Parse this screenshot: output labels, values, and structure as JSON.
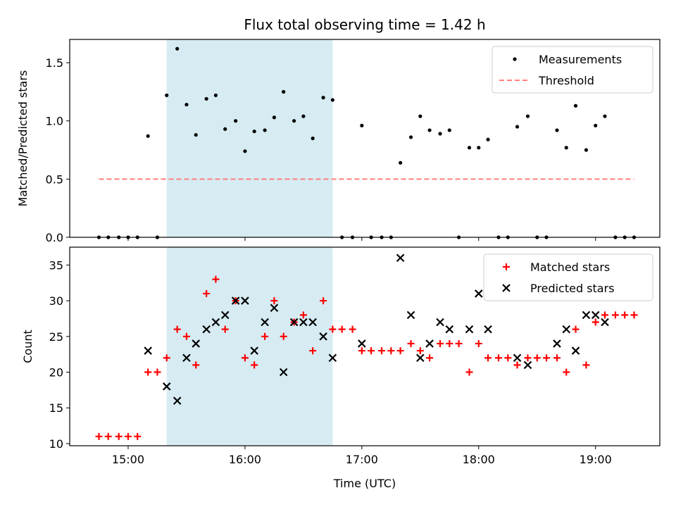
{
  "chart_data": {
    "title": "Flux total observing time = 1.42 h",
    "xlabel": "Time (UTC)",
    "x_ticks": [
      "15:00",
      "16:00",
      "17:00",
      "18:00",
      "19:00"
    ],
    "x_tick_hours": [
      15,
      16,
      17,
      18,
      19
    ],
    "xlim_hours": [
      14.5,
      19.55
    ],
    "highlight_hours": [
      15.33,
      16.75
    ],
    "colors": {
      "highlight": "#add8e6",
      "matched": "#ff0000",
      "predicted": "#000000",
      "measurement": "#000000",
      "threshold": "#ff7f7f"
    },
    "panels": [
      {
        "type": "scatter",
        "ylabel": "Matched/Predicted stars",
        "ylim": [
          0,
          1.7
        ],
        "y_ticks": [
          0.0,
          0.5,
          1.0,
          1.5
        ],
        "y_tick_labels": [
          "0.0",
          "0.5",
          "1.0",
          "1.5"
        ],
        "legend_position": "top-right",
        "threshold": {
          "name": "Threshold",
          "value": 0.5,
          "x_range_hours": [
            14.75,
            19.33
          ]
        },
        "series": [
          {
            "name": "Measurements",
            "x_hours": [
              14.75,
              14.83,
              14.92,
              15.0,
              15.08,
              15.17,
              15.25,
              15.33,
              15.42,
              15.5,
              15.58,
              15.67,
              15.75,
              15.83,
              15.92,
              16.0,
              16.08,
              16.17,
              16.25,
              16.33,
              16.42,
              16.5,
              16.58,
              16.67,
              16.75,
              16.83,
              16.92,
              17.0,
              17.08,
              17.17,
              17.25,
              17.33,
              17.42,
              17.5,
              17.58,
              17.67,
              17.75,
              17.83,
              17.92,
              18.0,
              18.08,
              18.17,
              18.25,
              18.33,
              18.42,
              18.5,
              18.58,
              18.67,
              18.75,
              18.83,
              18.92,
              19.0,
              19.08,
              19.17,
              19.25,
              19.33
            ],
            "y": [
              0,
              0,
              0,
              0,
              0,
              0.87,
              0,
              1.22,
              1.62,
              1.14,
              0.88,
              1.19,
              1.22,
              0.93,
              1.0,
              0.74,
              0.91,
              0.92,
              1.03,
              1.25,
              1.0,
              1.04,
              0.85,
              1.2,
              1.18,
              0,
              0,
              0.96,
              0,
              0,
              0,
              0.64,
              0.86,
              1.04,
              0.92,
              0.89,
              0.92,
              0,
              0.77,
              0.77,
              0.84,
              0,
              0,
              0.95,
              1.04,
              0,
              0,
              0.92,
              0.77,
              1.13,
              0.75,
              0.96,
              1.04,
              0,
              0,
              0
            ]
          }
        ]
      },
      {
        "type": "scatter",
        "ylabel": "Count",
        "ylim": [
          9.7,
          37.5
        ],
        "y_ticks": [
          10,
          15,
          20,
          25,
          30,
          35
        ],
        "y_tick_labels": [
          "10",
          "15",
          "20",
          "25",
          "30",
          "35"
        ],
        "legend_position": "top-right",
        "series": [
          {
            "name": "Matched stars",
            "x_hours": [
              14.75,
              14.83,
              14.92,
              15.0,
              15.08,
              15.17,
              15.25,
              15.33,
              15.42,
              15.5,
              15.58,
              15.67,
              15.75,
              15.83,
              15.92,
              16.0,
              16.08,
              16.17,
              16.25,
              16.33,
              16.42,
              16.5,
              16.58,
              16.67,
              16.75,
              16.83,
              16.92,
              17.0,
              17.08,
              17.17,
              17.25,
              17.33,
              17.42,
              17.5,
              17.58,
              17.67,
              17.75,
              17.83,
              17.92,
              18.0,
              18.08,
              18.17,
              18.25,
              18.33,
              18.42,
              18.5,
              18.58,
              18.67,
              18.75,
              18.83,
              18.92,
              19.0,
              19.08,
              19.17,
              19.25,
              19.33
            ],
            "y": [
              11,
              11,
              11,
              11,
              11,
              20,
              20,
              22,
              26,
              25,
              21,
              31,
              33,
              26,
              30,
              22,
              21,
              25,
              30,
              25,
              27,
              28,
              23,
              30,
              26,
              26,
              26,
              23,
              23,
              23,
              23,
              23,
              24,
              23,
              22,
              24,
              24,
              24,
              20,
              24,
              22,
              22,
              22,
              21,
              22,
              22,
              22,
              22,
              20,
              26,
              21,
              27,
              28,
              28,
              28,
              28
            ]
          },
          {
            "name": "Predicted stars",
            "x_hours": [
              15.17,
              15.33,
              15.42,
              15.5,
              15.58,
              15.67,
              15.75,
              15.83,
              15.92,
              16.0,
              16.08,
              16.17,
              16.25,
              16.33,
              16.42,
              16.5,
              16.58,
              16.67,
              16.75,
              17.0,
              17.33,
              17.42,
              17.5,
              17.58,
              17.67,
              17.75,
              17.92,
              18.0,
              18.08,
              18.33,
              18.42,
              18.67,
              18.75,
              18.83,
              18.92,
              19.0,
              19.08
            ],
            "y": [
              23,
              18,
              16,
              22,
              24,
              26,
              27,
              28,
              30,
              30,
              23,
              27,
              29,
              20,
              27,
              27,
              27,
              25,
              22,
              24,
              36,
              28,
              22,
              24,
              27,
              26,
              26,
              31,
              26,
              22,
              21,
              24,
              26,
              23,
              28,
              28,
              27
            ]
          }
        ]
      }
    ]
  }
}
